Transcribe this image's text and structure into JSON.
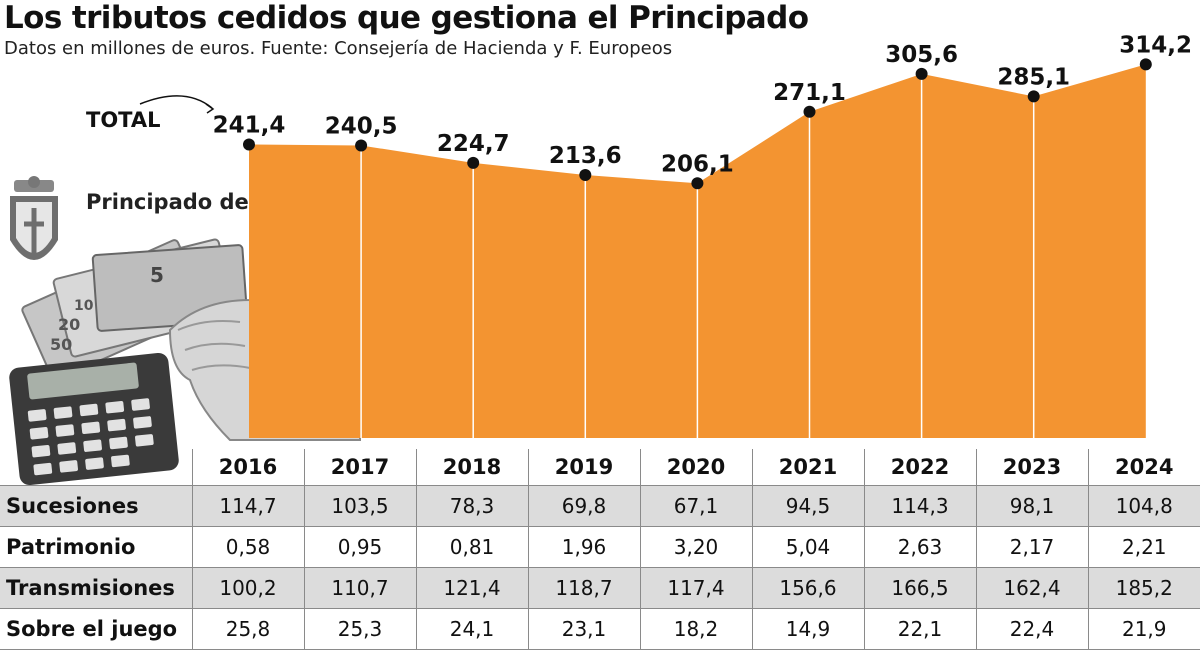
{
  "title": "Los tributos cedidos que gestiona el Principado",
  "subtitle": "Datos en millones de euros. Fuente: Consejería de Hacienda y F. Europeos",
  "total_label": "TOTAL",
  "logo_text": "Principado de",
  "colors": {
    "area": "#f39431",
    "point": "#111111",
    "shaded_row": "#dcdcdc"
  },
  "chart_data": {
    "type": "area",
    "title": "Los tributos cedidos que gestiona el Principado",
    "series": [
      {
        "name": "TOTAL",
        "values": [
          241.4,
          240.5,
          224.7,
          213.6,
          206.1,
          271.1,
          305.6,
          285.1,
          314.2
        ]
      }
    ],
    "value_labels": [
      "241,4",
      "240,5",
      "224,7",
      "213,6",
      "206,1",
      "271,1",
      "305,6",
      "285,1",
      "314,2"
    ],
    "x": [
      "2016",
      "2017",
      "2018",
      "2019",
      "2020",
      "2021",
      "2022",
      "2023",
      "2024"
    ],
    "grid": false
  },
  "table": {
    "years": [
      "2016",
      "2017",
      "2018",
      "2019",
      "2020",
      "2021",
      "2022",
      "2023",
      "2024"
    ],
    "rows": [
      {
        "label": "Sucesiones",
        "values": [
          "114,7",
          "103,5",
          "78,3",
          "69,8",
          "67,1",
          "94,5",
          "114,3",
          "98,1",
          "104,8"
        ]
      },
      {
        "label": "Patrimonio",
        "values": [
          "0,58",
          "0,95",
          "0,81",
          "1,96",
          "3,20",
          "5,04",
          "2,63",
          "2,17",
          "2,21"
        ]
      },
      {
        "label": "Transmisiones",
        "values": [
          "100,2",
          "110,7",
          "121,4",
          "118,7",
          "117,4",
          "156,6",
          "166,5",
          "162,4",
          "185,2"
        ]
      },
      {
        "label": "Sobre el juego",
        "values": [
          "25,8",
          "25,3",
          "24,1",
          "23,1",
          "18,2",
          "14,9",
          "22,1",
          "22,4",
          "21,9"
        ]
      }
    ]
  }
}
